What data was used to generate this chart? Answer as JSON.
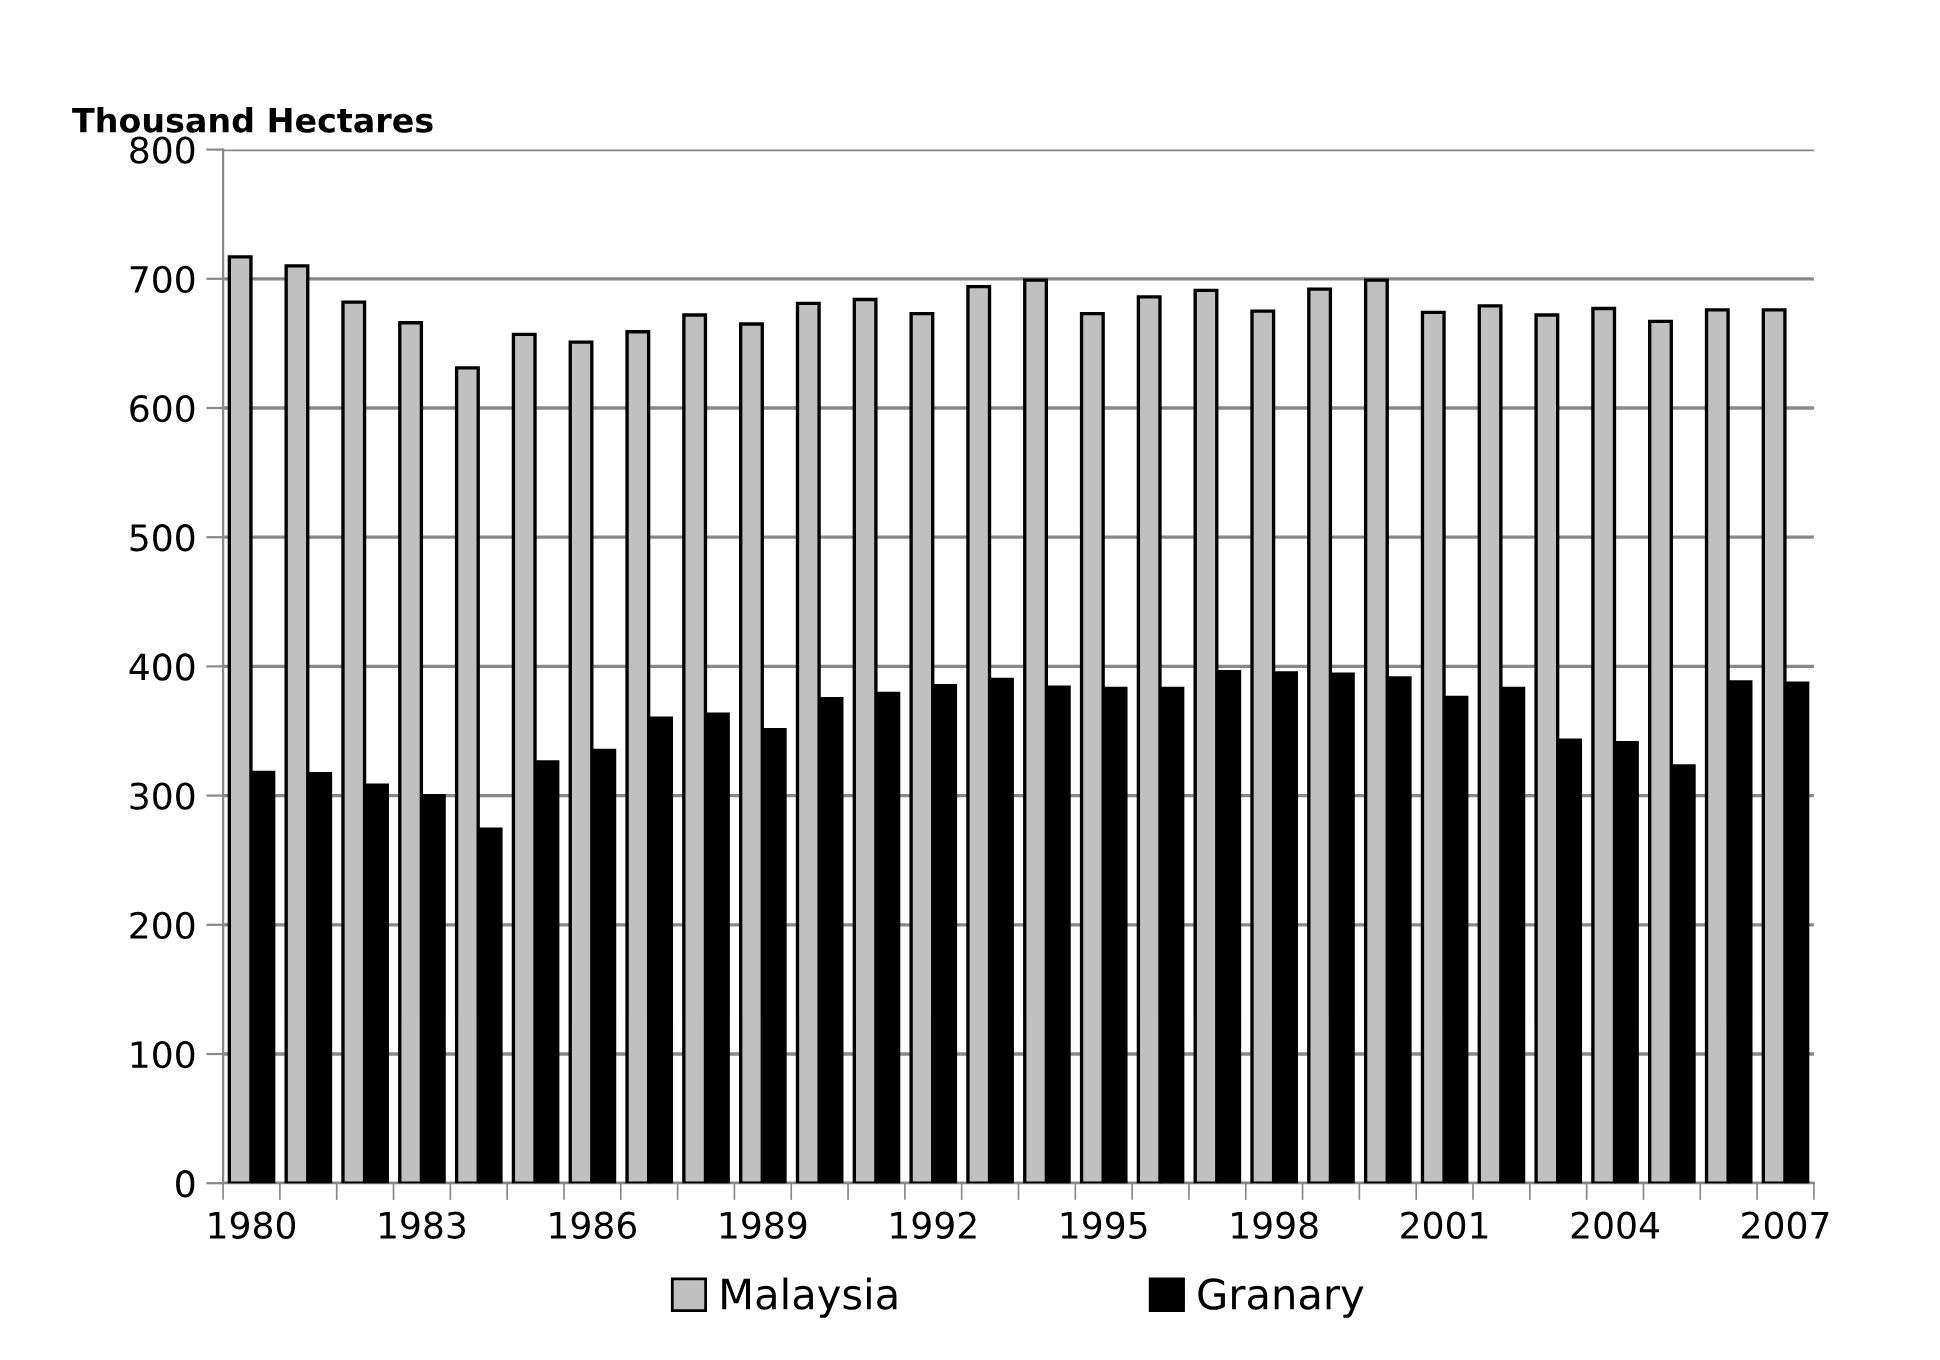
{
  "chart_data": {
    "type": "bar",
    "ylabel": "Thousand Hectares",
    "categories": [
      "1980",
      null,
      null,
      "1983",
      null,
      null,
      "1986",
      null,
      null,
      "1989",
      null,
      null,
      "1992",
      null,
      null,
      "1995",
      null,
      null,
      "1998",
      null,
      null,
      "2001",
      null,
      null,
      "2004",
      null,
      null,
      "2007"
    ],
    "series": [
      {
        "name": "Malaysia",
        "color": "#c0c0c0",
        "values": [
          717,
          710,
          682,
          666,
          631,
          657,
          651,
          659,
          672,
          665,
          681,
          684,
          673,
          694,
          699,
          673,
          686,
          691,
          675,
          692,
          699,
          674,
          679,
          672,
          677,
          667,
          676,
          676
        ]
      },
      {
        "name": "Granary",
        "color": "#000000",
        "values": [
          318,
          317,
          308,
          300,
          274,
          326,
          335,
          360,
          363,
          351,
          375,
          379,
          385,
          390,
          384,
          383,
          383,
          396,
          395,
          394,
          391,
          376,
          383,
          343,
          341,
          323,
          388,
          387
        ]
      }
    ],
    "ylim": [
      0,
      800
    ],
    "yticks": [
      0,
      100,
      200,
      300,
      400,
      500,
      600,
      700,
      800
    ],
    "grid": "y",
    "legend": "bottom"
  }
}
